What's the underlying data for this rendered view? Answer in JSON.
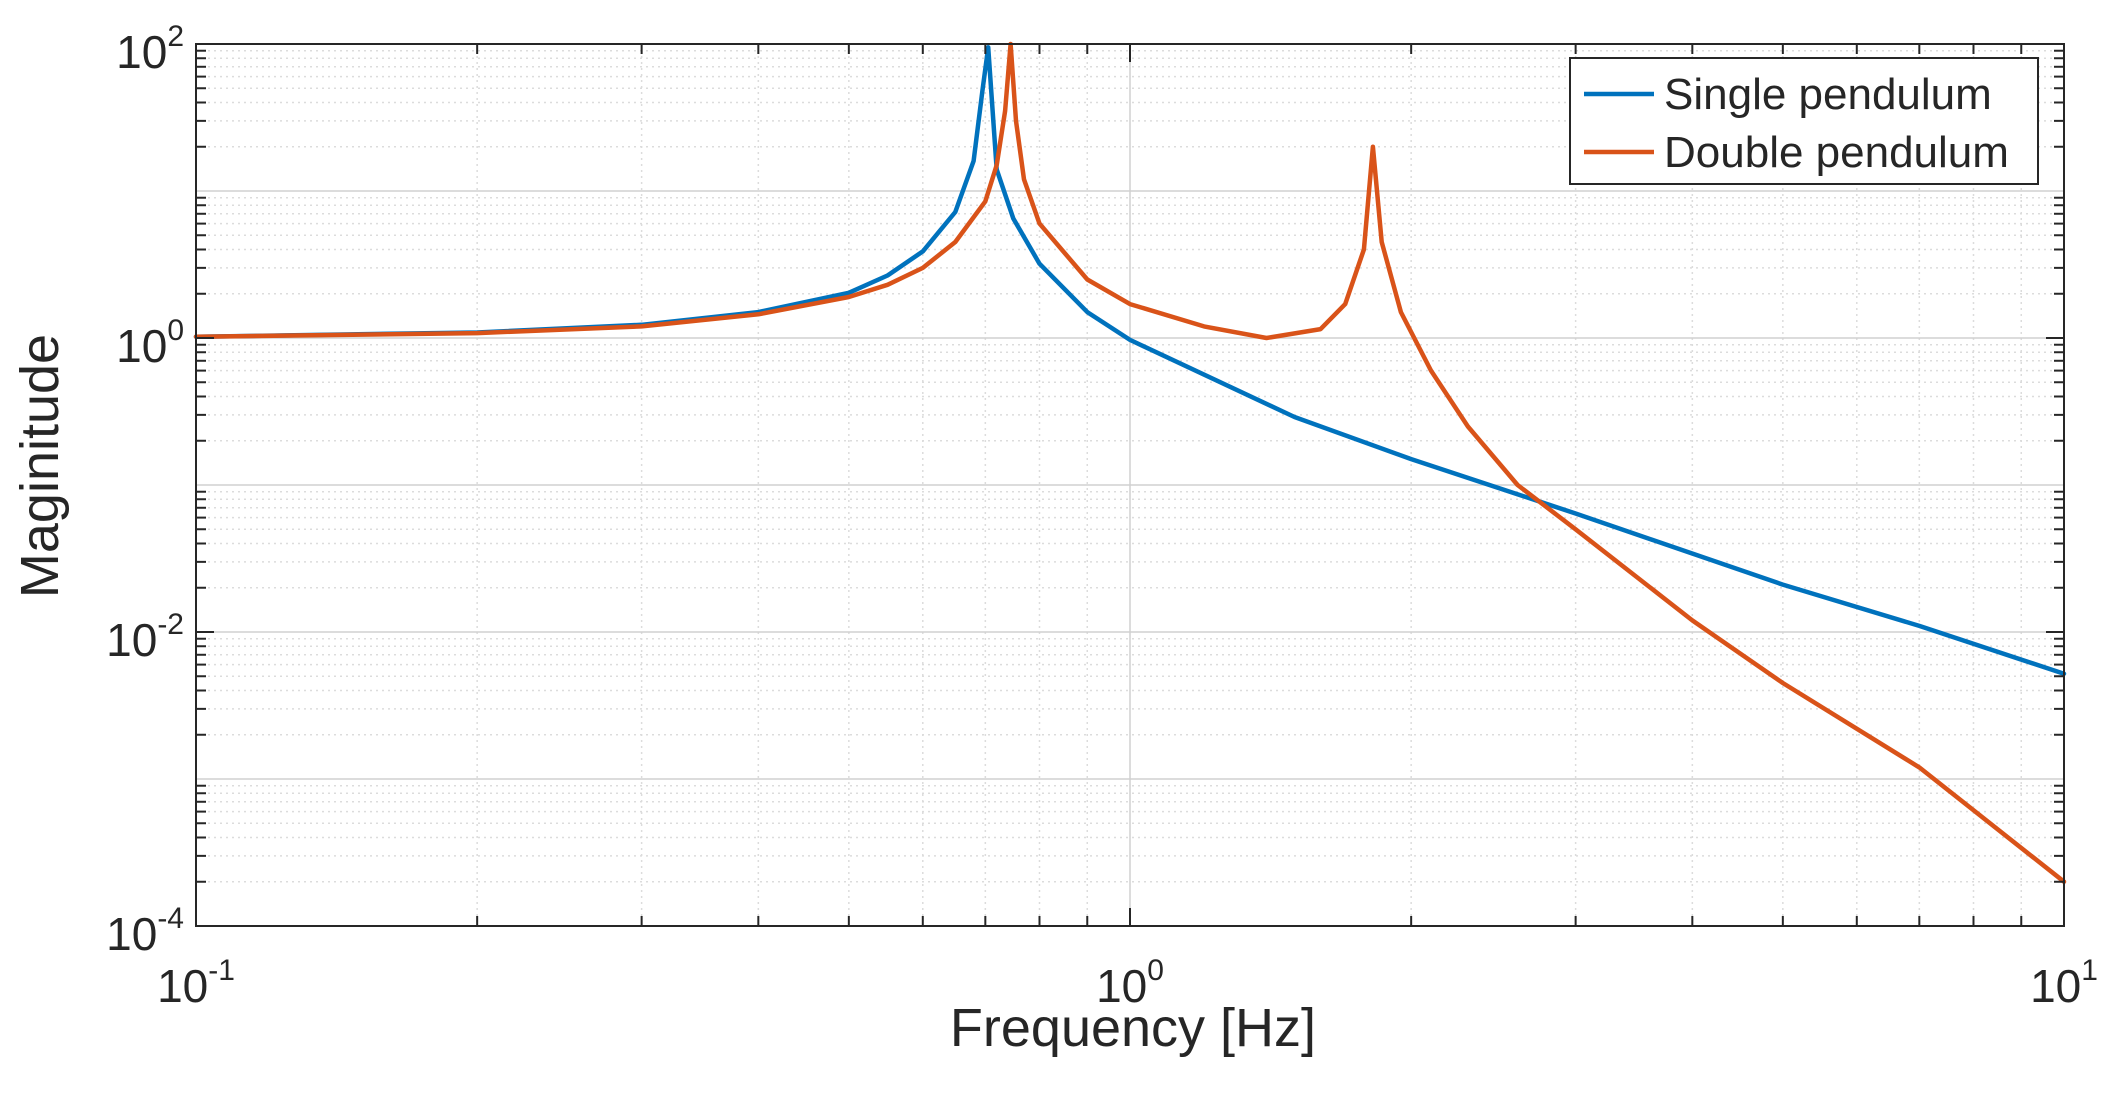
{
  "chart_data": {
    "type": "line",
    "title": "",
    "xlabel": "Frequency [Hz]",
    "ylabel": "Maginitude",
    "xscale": "log",
    "yscale": "log",
    "xlim": [
      0.1,
      10
    ],
    "ylim": [
      0.0001,
      100
    ],
    "grid": true,
    "legend_position": "top-right",
    "x_ticks": [
      {
        "base": "10",
        "exp": "-1",
        "value": 0.1
      },
      {
        "base": "10",
        "exp": "0",
        "value": 1
      },
      {
        "base": "10",
        "exp": "1",
        "value": 10
      }
    ],
    "y_ticks": [
      {
        "base": "10",
        "exp": "-4",
        "value": 0.0001
      },
      {
        "base": "10",
        "exp": "-2",
        "value": 0.01
      },
      {
        "base": "10",
        "exp": "0",
        "value": 1
      },
      {
        "base": "10",
        "exp": "2",
        "value": 100
      }
    ],
    "series": [
      {
        "name": "Single pendulum",
        "color": "#0072BD",
        "x": [
          0.1,
          0.2,
          0.3,
          0.4,
          0.5,
          0.55,
          0.6,
          0.65,
          0.68,
          0.695,
          0.705,
          0.72,
          0.75,
          0.8,
          0.9,
          1.0,
          1.5,
          2.0,
          3.0,
          5.0,
          7.0,
          10.0
        ],
        "y": [
          1.02,
          1.09,
          1.23,
          1.5,
          2.03,
          2.66,
          3.88,
          7.2,
          16.0,
          48.0,
          95.0,
          14.0,
          6.5,
          3.2,
          1.5,
          0.97,
          0.29,
          0.15,
          0.064,
          0.021,
          0.011,
          0.0052
        ]
      },
      {
        "name": "Double pendulum",
        "color": "#D95319",
        "x": [
          0.1,
          0.2,
          0.3,
          0.4,
          0.5,
          0.55,
          0.6,
          0.65,
          0.7,
          0.72,
          0.735,
          0.745,
          0.755,
          0.77,
          0.8,
          0.9,
          1.0,
          1.2,
          1.4,
          1.6,
          1.7,
          1.78,
          1.82,
          1.86,
          1.95,
          2.1,
          2.3,
          2.6,
          3.0,
          4.0,
          5.0,
          7.0,
          10.0
        ],
        "y": [
          1.02,
          1.08,
          1.2,
          1.45,
          1.9,
          2.3,
          3.0,
          4.5,
          8.5,
          15.0,
          35.0,
          100.0,
          30.0,
          12.0,
          6.0,
          2.5,
          1.7,
          1.2,
          1.0,
          1.15,
          1.7,
          4.0,
          20.0,
          4.5,
          1.5,
          0.6,
          0.25,
          0.1,
          0.05,
          0.012,
          0.0045,
          0.0012,
          0.0002
        ]
      }
    ]
  }
}
